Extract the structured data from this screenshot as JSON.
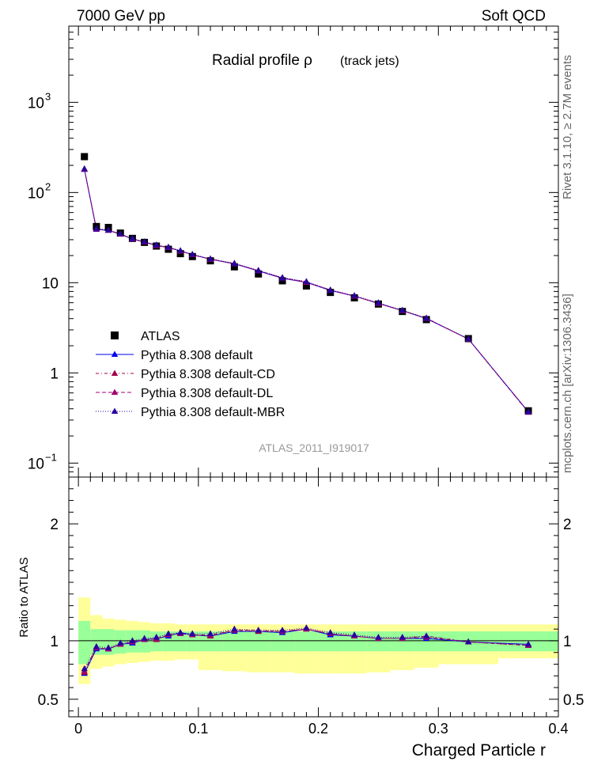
{
  "header": {
    "left": "7000 GeV pp",
    "right": "Soft QCD"
  },
  "side_labels": {
    "upper": "Rivet 3.1.10, ≥ 2.7M events",
    "lower": "mcplots.cern.ch [arXiv:1306.3436]"
  },
  "plot_title": {
    "main": "Radial profile  ρ",
    "sub": "(track jets)"
  },
  "analysis_label": "ATLAS_2011_I919017",
  "colors": {
    "data": "#000000",
    "default": "#0000ee",
    "cd": "#a0004a",
    "dl": "#a00070",
    "mbr": "#2a00a0",
    "band_inner": "#99ff99",
    "band_outer": "#ffff99"
  },
  "legend": [
    {
      "label": "ATLAS",
      "key": "data"
    },
    {
      "label": "Pythia 8.308 default",
      "key": "default"
    },
    {
      "label": "Pythia 8.308 default-CD",
      "key": "cd"
    },
    {
      "label": "Pythia 8.308 default-DL",
      "key": "dl"
    },
    {
      "label": "Pythia 8.308 default-MBR",
      "key": "mbr"
    }
  ],
  "chart_data": {
    "type": "scatter",
    "xlabel": "Charged Particle r",
    "ylabel_ratio": "Ratio to ATLAS",
    "xlim": [
      -0.008,
      0.4
    ],
    "ylim_main": [
      0.07,
      7000
    ],
    "yscale_main": "log",
    "ylim_ratio": [
      0.35,
      2.4
    ],
    "x_ticks": [
      0,
      0.1,
      0.2,
      0.3,
      0.4
    ],
    "x_tick_labels": [
      "0",
      "0.1",
      "0.2",
      "0.3",
      "0.4"
    ],
    "main_tick_labels": [
      {
        "value": 1000,
        "base": "10",
        "exp": "3"
      },
      {
        "value": 100,
        "base": "10",
        "exp": "2"
      },
      {
        "value": 10,
        "base": "10",
        "exp": ""
      },
      {
        "value": 1,
        "base": "1",
        "exp": ""
      },
      {
        "value": 0.1,
        "base": "10",
        "exp": "−1"
      }
    ],
    "ratio_ticks": [
      0.5,
      1,
      2
    ],
    "ratio_tick_labels": [
      "0.5",
      "1",
      "2"
    ],
    "x": [
      0.005,
      0.015,
      0.025,
      0.035,
      0.045,
      0.055,
      0.065,
      0.075,
      0.085,
      0.095,
      0.11,
      0.13,
      0.15,
      0.17,
      0.19,
      0.21,
      0.23,
      0.25,
      0.27,
      0.29,
      0.325,
      0.375
    ],
    "bin_edges": [
      0,
      0.01,
      0.02,
      0.03,
      0.04,
      0.05,
      0.06,
      0.07,
      0.08,
      0.09,
      0.1,
      0.12,
      0.14,
      0.16,
      0.18,
      0.2,
      0.22,
      0.24,
      0.26,
      0.28,
      0.3,
      0.35,
      0.4
    ],
    "data_values": [
      250,
      42,
      41,
      35.5,
      31,
      28,
      25.5,
      23.5,
      21,
      19.5,
      17.5,
      15,
      12.5,
      10.5,
      9.2,
      7.8,
      6.8,
      5.8,
      4.8,
      3.9,
      2.4,
      0.38
    ],
    "band_inner_lo": [
      0.8,
      0.88,
      0.88,
      0.89,
      0.9,
      0.9,
      0.91,
      0.91,
      0.91,
      0.91,
      0.91,
      0.91,
      0.91,
      0.91,
      0.91,
      0.91,
      0.91,
      0.91,
      0.91,
      0.91,
      0.91,
      0.91
    ],
    "band_inner_hi": [
      1.17,
      1.1,
      1.1,
      1.09,
      1.09,
      1.09,
      1.08,
      1.08,
      1.08,
      1.08,
      1.08,
      1.08,
      1.08,
      1.08,
      1.08,
      1.08,
      1.08,
      1.08,
      1.08,
      1.08,
      1.08,
      1.08
    ],
    "band_outer_lo": [
      0.63,
      0.76,
      0.78,
      0.8,
      0.81,
      0.82,
      0.83,
      0.83,
      0.84,
      0.84,
      0.75,
      0.74,
      0.73,
      0.73,
      0.72,
      0.72,
      0.72,
      0.73,
      0.75,
      0.77,
      0.8,
      0.85
    ],
    "band_outer_hi": [
      1.37,
      1.22,
      1.19,
      1.18,
      1.17,
      1.16,
      1.15,
      1.15,
      1.14,
      1.14,
      1.14,
      1.14,
      1.14,
      1.14,
      1.14,
      1.14,
      1.14,
      1.14,
      1.14,
      1.14,
      1.14,
      1.14
    ],
    "series": [
      {
        "name": "Pythia 8.308 default",
        "key": "default",
        "dash": "",
        "values": [
          180,
          39,
          38,
          34.5,
          30.5,
          28.2,
          26,
          24.5,
          22.5,
          20.5,
          18.2,
          16.2,
          13.5,
          11.2,
          10.1,
          8.2,
          7.1,
          5.9,
          4.9,
          4.0,
          2.38,
          0.37
        ],
        "ratio": [
          0.72,
          0.93,
          0.93,
          0.97,
          0.98,
          1.01,
          1.02,
          1.04,
          1.07,
          1.05,
          1.04,
          1.08,
          1.08,
          1.07,
          1.1,
          1.05,
          1.04,
          1.02,
          1.02,
          1.02,
          0.99,
          0.97
        ]
      },
      {
        "name": "Pythia 8.308 default-CD",
        "key": "cd",
        "dash": "4,3,1,3",
        "values": [
          182,
          39.5,
          38.2,
          34.6,
          30.6,
          28.3,
          25.7,
          24.6,
          22.4,
          20.4,
          18.2,
          16.3,
          13.6,
          11.3,
          10.2,
          8.3,
          7.1,
          5.9,
          4.9,
          4.05,
          2.37,
          0.365
        ],
        "ratio": [
          0.73,
          0.94,
          0.93,
          0.97,
          0.99,
          1.01,
          1.01,
          1.05,
          1.06,
          1.05,
          1.04,
          1.09,
          1.08,
          1.08,
          1.1,
          1.06,
          1.04,
          1.02,
          1.02,
          1.04,
          0.99,
          0.96
        ]
      },
      {
        "name": "Pythia 8.308 default-DL",
        "key": "dl",
        "dash": "5,3",
        "values": [
          181,
          39.2,
          38.1,
          34.5,
          30.6,
          28.2,
          25.8,
          24.6,
          22.5,
          20.4,
          18.3,
          16.3,
          13.6,
          11.3,
          10.1,
          8.3,
          7.1,
          5.9,
          4.9,
          4.02,
          2.37,
          0.367
        ],
        "ratio": [
          0.74,
          0.94,
          0.93,
          0.97,
          0.99,
          1.01,
          1.02,
          1.05,
          1.06,
          1.05,
          1.05,
          1.09,
          1.09,
          1.08,
          1.1,
          1.06,
          1.04,
          1.02,
          1.02,
          1.03,
          0.99,
          0.96
        ]
      },
      {
        "name": "Pythia 8.308 default-MBR",
        "key": "mbr",
        "dash": "1,2",
        "values": [
          183,
          39.8,
          38.4,
          34.8,
          30.8,
          28.5,
          26.2,
          24.8,
          22.7,
          20.6,
          18.4,
          16.4,
          13.7,
          11.4,
          10.3,
          8.3,
          7.2,
          6.0,
          4.95,
          4.05,
          2.38,
          0.37
        ],
        "ratio": [
          0.76,
          0.95,
          0.94,
          0.98,
          1.0,
          1.02,
          1.03,
          1.06,
          1.07,
          1.06,
          1.06,
          1.1,
          1.09,
          1.09,
          1.11,
          1.07,
          1.05,
          1.03,
          1.03,
          1.04,
          0.99,
          0.97
        ]
      }
    ]
  }
}
